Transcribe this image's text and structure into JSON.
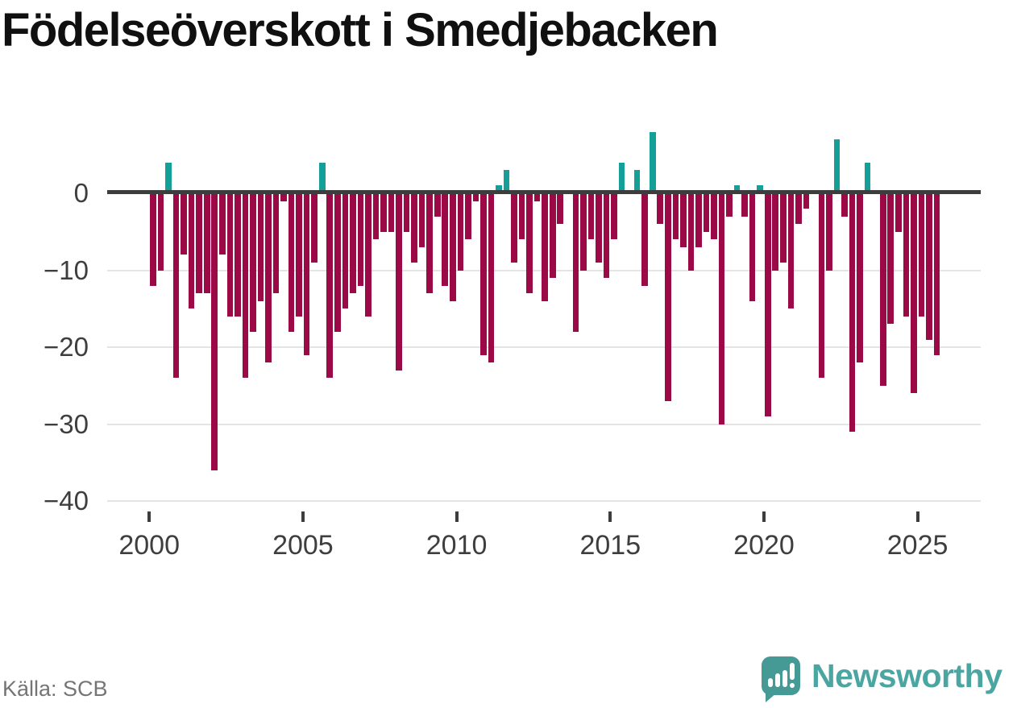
{
  "title": "Födelseöverskott i Smedjebacken",
  "source": {
    "text": "Källa: SCB"
  },
  "brand": {
    "name": "Newsworthy"
  },
  "colors": {
    "negative_bar": "#9b0a46",
    "positive_bar": "#14a099",
    "zero_line": "#3d3d3d",
    "gridline": "#e4e4e4",
    "axis_text": "#3e3e3e",
    "source_text": "#757575",
    "brand_teal": "#4ba5a1",
    "title_color": "#101010"
  },
  "chart_data": {
    "type": "bar",
    "title": "Födelseöverskott i Smedjebacken",
    "frequency": "quarterly",
    "start": "2000Q1",
    "end": "2025Q3",
    "values": [
      -12,
      -10,
      4,
      -24,
      -8,
      -15,
      -13,
      -13,
      -36,
      -8,
      -16,
      -16,
      -24,
      -18,
      -14,
      -22,
      -13,
      -1,
      -18,
      -16,
      -21,
      -9,
      4,
      -24,
      -18,
      -15,
      -13,
      -12,
      -16,
      -6,
      -5,
      -5,
      -23,
      -5,
      -9,
      -7,
      -13,
      -3,
      -12,
      -14,
      -10,
      -6,
      -1,
      -21,
      -22,
      1,
      3,
      -9,
      -6,
      -13,
      -1,
      -14,
      -11,
      -4,
      0,
      -18,
      -10,
      -6,
      -9,
      -11,
      -6,
      4,
      0,
      3,
      -12,
      8,
      -4,
      -27,
      -6,
      -7,
      -10,
      -7,
      -5,
      -6,
      -30,
      -3,
      1,
      -3,
      -14,
      1,
      -29,
      -10,
      -9,
      -15,
      -4,
      -2,
      0,
      -24,
      -10,
      7,
      -3,
      -31,
      -22,
      4,
      0,
      -25,
      -17,
      -5,
      -16,
      -26,
      -16,
      -19,
      -21
    ],
    "xlabel": "",
    "ylabel": "",
    "x_axis": {
      "tick_labels": [
        "2000",
        "2005",
        "2010",
        "2015",
        "2020",
        "2025"
      ]
    },
    "y_axis": {
      "tick_labels": [
        "0",
        "−10",
        "−20",
        "−30",
        "−40"
      ],
      "tick_values": [
        0,
        -10,
        -20,
        -30,
        -40
      ]
    },
    "ylim": [
      -43,
      9
    ],
    "grid": "horizontal",
    "legend": "none"
  }
}
